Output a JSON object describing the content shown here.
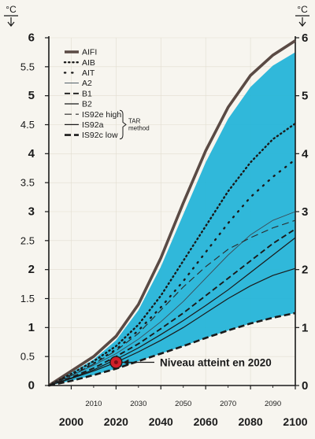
{
  "chart_data": {
    "type": "area",
    "y_unit": "°C",
    "ylim": [
      0,
      6
    ],
    "yticks": [
      0,
      0.5,
      1,
      1.5,
      2,
      2.5,
      3,
      3.5,
      4,
      4.5,
      5,
      5.5,
      6
    ],
    "yticks_right": [
      0,
      1,
      2,
      3,
      4,
      5,
      6
    ],
    "xlim": [
      1990,
      2100
    ],
    "xticks_major": [
      2000,
      2020,
      2040,
      2060,
      2080,
      2100
    ],
    "xticks_minor": [
      2010,
      2030,
      2050,
      2070,
      2090
    ],
    "band": {
      "color": "#25b4d8",
      "x": [
        1990,
        2000,
        2010,
        2020,
        2030,
        2040,
        2050,
        2060,
        2070,
        2080,
        2090,
        2100
      ],
      "upper": [
        0,
        0.22,
        0.45,
        0.78,
        1.3,
        2.05,
        2.95,
        3.85,
        4.6,
        5.15,
        5.52,
        5.75
      ],
      "lower": [
        0,
        0.08,
        0.18,
        0.29,
        0.42,
        0.55,
        0.68,
        0.82,
        0.95,
        1.07,
        1.17,
        1.25
      ]
    },
    "series": [
      {
        "name": "AIFI",
        "style": "thick",
        "x": [
          1990,
          2000,
          2010,
          2020,
          2030,
          2040,
          2050,
          2060,
          2070,
          2080,
          2090,
          2100
        ],
        "values": [
          0,
          0.25,
          0.5,
          0.85,
          1.4,
          2.2,
          3.15,
          4.05,
          4.8,
          5.35,
          5.7,
          5.95
        ]
      },
      {
        "name": "AIB",
        "style": "dotted",
        "x": [
          1990,
          2000,
          2010,
          2020,
          2030,
          2040,
          2050,
          2060,
          2070,
          2080,
          2090,
          2100
        ],
        "values": [
          0,
          0.2,
          0.42,
          0.68,
          1.05,
          1.55,
          2.15,
          2.75,
          3.35,
          3.85,
          4.25,
          4.52
        ]
      },
      {
        "name": "AIT",
        "style": "sparse-dotted",
        "x": [
          1990,
          2000,
          2010,
          2020,
          2030,
          2040,
          2050,
          2060,
          2070,
          2080,
          2090,
          2100
        ],
        "values": [
          0,
          0.18,
          0.38,
          0.62,
          0.95,
          1.35,
          1.8,
          2.3,
          2.8,
          3.25,
          3.6,
          3.9
        ]
      },
      {
        "name": "A2",
        "style": "thin",
        "x": [
          1990,
          2000,
          2010,
          2020,
          2030,
          2040,
          2050,
          2060,
          2070,
          2080,
          2090,
          2100
        ],
        "values": [
          0,
          0.17,
          0.35,
          0.55,
          0.8,
          1.1,
          1.45,
          1.85,
          2.25,
          2.6,
          2.85,
          3.0
        ]
      },
      {
        "name": "B1",
        "style": "dashed",
        "x": [
          1990,
          2000,
          2010,
          2020,
          2030,
          2040,
          2050,
          2060,
          2070,
          2080,
          2090,
          2100
        ],
        "values": [
          0,
          0.14,
          0.3,
          0.5,
          0.72,
          0.98,
          1.25,
          1.55,
          1.85,
          2.15,
          2.45,
          2.7
        ]
      },
      {
        "name": "B2",
        "style": "solid",
        "x": [
          1990,
          2000,
          2010,
          2020,
          2030,
          2040,
          2050,
          2060,
          2070,
          2080,
          2090,
          2100
        ],
        "values": [
          0,
          0.13,
          0.27,
          0.45,
          0.65,
          0.88,
          1.12,
          1.38,
          1.65,
          1.95,
          2.25,
          2.55
        ]
      },
      {
        "name": "IS92e high",
        "style": "long-dashed",
        "x": [
          1990,
          2000,
          2010,
          2020,
          2030,
          2040,
          2050,
          2060,
          2070,
          2080,
          2090,
          2100
        ],
        "values": [
          0,
          0.17,
          0.37,
          0.6,
          0.9,
          1.3,
          1.7,
          2.05,
          2.35,
          2.55,
          2.72,
          2.85
        ]
      },
      {
        "name": "IS92a",
        "style": "solid",
        "x": [
          1990,
          2000,
          2010,
          2020,
          2030,
          2040,
          2050,
          2060,
          2070,
          2080,
          2090,
          2100
        ],
        "values": [
          0,
          0.12,
          0.25,
          0.4,
          0.58,
          0.78,
          1.0,
          1.25,
          1.5,
          1.72,
          1.9,
          2.02
        ]
      },
      {
        "name": "IS92c low",
        "style": "thick-dashed",
        "x": [
          1990,
          2000,
          2010,
          2020,
          2030,
          2040,
          2050,
          2060,
          2070,
          2080,
          2090,
          2100
        ],
        "values": [
          0,
          0.08,
          0.18,
          0.29,
          0.42,
          0.55,
          0.68,
          0.82,
          0.95,
          1.07,
          1.17,
          1.25
        ]
      }
    ],
    "tar_bracket_label": "TAR\nmethod",
    "marker": {
      "x": 2020,
      "y": 0.4,
      "color": "#d0202a",
      "label": "Niveau atteint en 2020"
    },
    "grid": true,
    "legend_placement": "top-left"
  }
}
